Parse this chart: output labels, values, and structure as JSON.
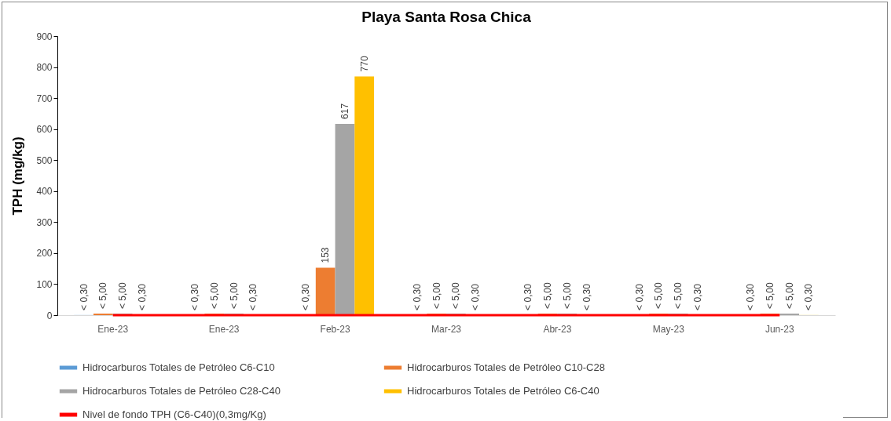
{
  "chart_data": {
    "type": "bar",
    "title": "Playa Santa Rosa Chica",
    "ylabel": "TPH (mg/kg)",
    "categories": [
      "Ene-23",
      "Ene-23",
      "Feb-23",
      "Mar-23",
      "Abr-23",
      "May-23",
      "Jun-23"
    ],
    "ylim": [
      0,
      900
    ],
    "yticks": [
      0,
      100,
      200,
      300,
      400,
      500,
      600,
      700,
      800,
      900
    ],
    "grid": false,
    "legend": "bottom",
    "series": [
      {
        "name": "Hidrocarburos Totales de Petróleo C6-C10",
        "color": "#5b9bd5",
        "values": [
          0.3,
          0.3,
          0.3,
          0.3,
          0.3,
          0.3,
          0.3
        ],
        "value_labels": [
          "< 0,30",
          "< 0,30",
          "< 0,30",
          "< 0,30",
          "< 0,30",
          "< 0,30",
          "< 0,30"
        ]
      },
      {
        "name": "Hidrocarburos Totales de Petróleo C10-C28",
        "color": "#ed7d31",
        "values": [
          5,
          5,
          153,
          5,
          5,
          5,
          5
        ],
        "value_labels": [
          "< 5,00",
          "< 5,00",
          "153",
          "< 5,00",
          "< 5,00",
          "< 5,00",
          "< 5,00"
        ]
      },
      {
        "name": "Hidrocarburos Totales de Petróleo C28-C40",
        "color": "#a5a5a5",
        "values": [
          5,
          5,
          617,
          5,
          5,
          5,
          5
        ],
        "value_labels": [
          "< 5,00",
          "< 5,00",
          "617",
          "< 5,00",
          "< 5,00",
          "< 5,00",
          "< 5,00"
        ]
      },
      {
        "name": "Hidrocarburos Totales de Petróleo C6-C40",
        "color": "#ffc000",
        "values": [
          0.3,
          0.3,
          770,
          0.3,
          0.3,
          0.3,
          0.3
        ],
        "value_labels": [
          "< 0,30",
          "< 0,30",
          "770",
          "< 0,30",
          "< 0,30",
          "< 0,30",
          "< 0,30"
        ]
      },
      {
        "name": "Nivel de fondo TPH (C6-C40)(0,3mg/Kg)",
        "type": "line",
        "color": "#ff0000",
        "values": [
          0.3,
          0.3,
          0.3,
          0.3,
          0.3,
          0.3,
          0.3
        ]
      }
    ]
  }
}
